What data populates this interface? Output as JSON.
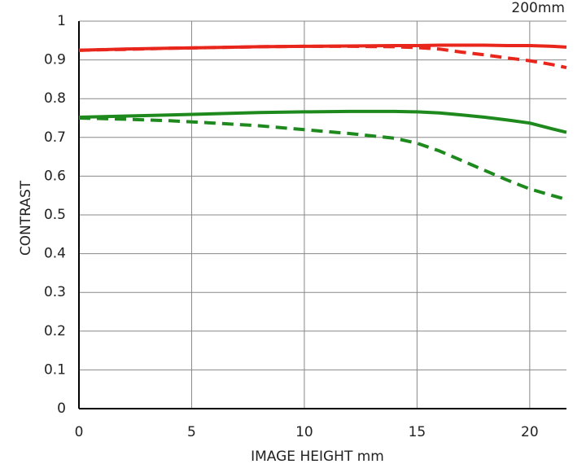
{
  "chart_data": {
    "type": "line",
    "title": "200mm",
    "x_label": "IMAGE HEIGHT   mm",
    "y_label": "CONTRAST",
    "x": [
      0,
      2,
      4,
      6,
      8,
      10,
      12,
      14,
      15,
      16,
      17,
      18,
      19,
      20,
      21,
      21.63
    ],
    "series": [
      {
        "color": "#e8261c",
        "dashed": false,
        "values": [
          0.925,
          0.928,
          0.93,
          0.932,
          0.934,
          0.935,
          0.936,
          0.937,
          0.937,
          0.938,
          0.938,
          0.938,
          0.937,
          0.937,
          0.935,
          0.933
        ]
      },
      {
        "color": "#e8261c",
        "dashed": true,
        "values": [
          0.925,
          0.927,
          0.93,
          0.932,
          0.934,
          0.935,
          0.935,
          0.934,
          0.932,
          0.928,
          0.92,
          0.913,
          0.905,
          0.898,
          0.888,
          0.88
        ]
      },
      {
        "color": "#1e8a1e",
        "dashed": false,
        "values": [
          0.752,
          0.755,
          0.758,
          0.761,
          0.764,
          0.766,
          0.767,
          0.767,
          0.766,
          0.763,
          0.758,
          0.752,
          0.745,
          0.737,
          0.722,
          0.713
        ]
      },
      {
        "color": "#1e8a1e",
        "dashed": true,
        "values": [
          0.75,
          0.747,
          0.743,
          0.737,
          0.73,
          0.72,
          0.71,
          0.698,
          0.685,
          0.665,
          0.64,
          0.615,
          0.59,
          0.567,
          0.55,
          0.54
        ]
      }
    ],
    "xlim": [
      0,
      21.63
    ],
    "xticks": [
      0,
      5,
      10,
      15,
      20
    ],
    "ylim": [
      0,
      1
    ],
    "yticks": [
      0,
      0.1,
      0.2,
      0.3,
      0.4,
      0.5,
      0.6,
      0.7,
      0.8,
      0.9,
      1
    ],
    "grid": true
  }
}
